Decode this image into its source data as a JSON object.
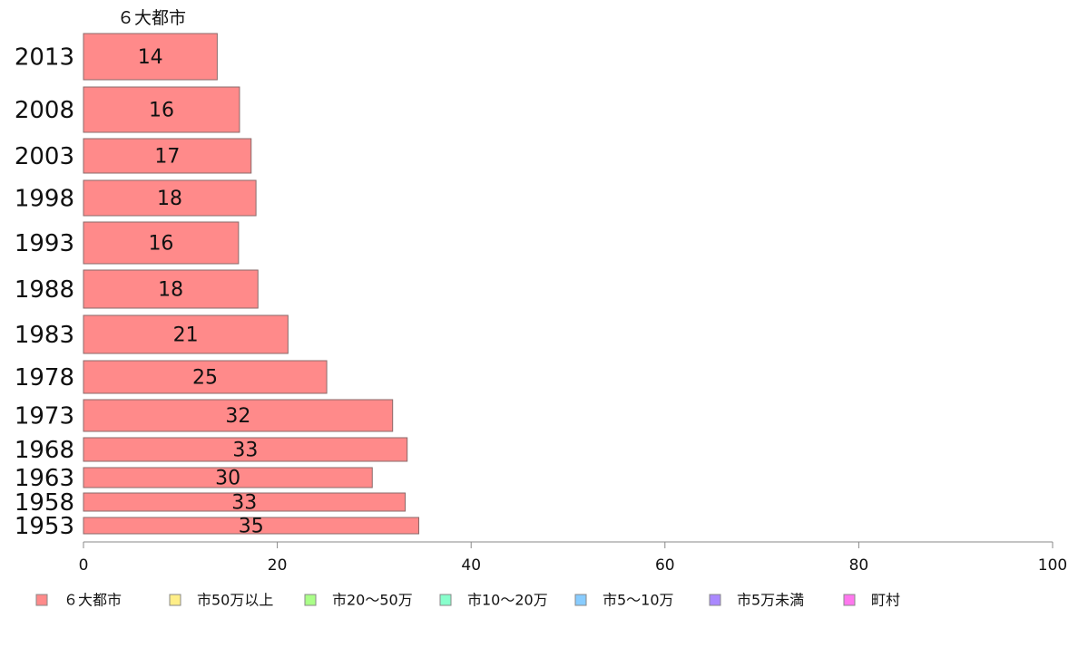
{
  "chart_data": {
    "type": "bar",
    "orientation": "horizontal",
    "stacked": true,
    "categories": [
      "2013",
      "2008",
      "2003",
      "1998",
      "1993",
      "1988",
      "1983",
      "1978",
      "1973",
      "1968",
      "1963",
      "1958",
      "1953"
    ],
    "category_column_header": "６大都市",
    "series": [
      {
        "name": "６大都市",
        "color": "#ff8a8a",
        "values": [
          13.8,
          16.1,
          17.3,
          17.8,
          16.0,
          18.0,
          21.1,
          25.1,
          31.9,
          33.4,
          29.8,
          33.2,
          34.6
        ],
        "labels": [
          "14",
          "16",
          "17",
          "18",
          "16",
          "18",
          "21",
          "25",
          "32",
          "33",
          "30",
          "33",
          "35"
        ]
      }
    ],
    "legend": {
      "placement": "bottom",
      "entries": [
        {
          "name": "６大都市",
          "color": "#ff8a8a"
        },
        {
          "name": "市50万以上",
          "color": "#ffee88"
        },
        {
          "name": "市20〜50万",
          "color": "#aaff88"
        },
        {
          "name": "市10〜20万",
          "color": "#88ffcc"
        },
        {
          "name": "市5〜10万",
          "color": "#88ccff"
        },
        {
          "name": "市5万未満",
          "color": "#aa88ff"
        },
        {
          "name": "町村",
          "color": "#ff77ee"
        }
      ]
    },
    "xlim": [
      0,
      100
    ],
    "xticks": [
      0,
      20,
      40,
      60,
      80,
      100
    ],
    "xtick_labels": [
      "0",
      "20",
      "40",
      "60",
      "80",
      "100"
    ],
    "grid": false
  }
}
